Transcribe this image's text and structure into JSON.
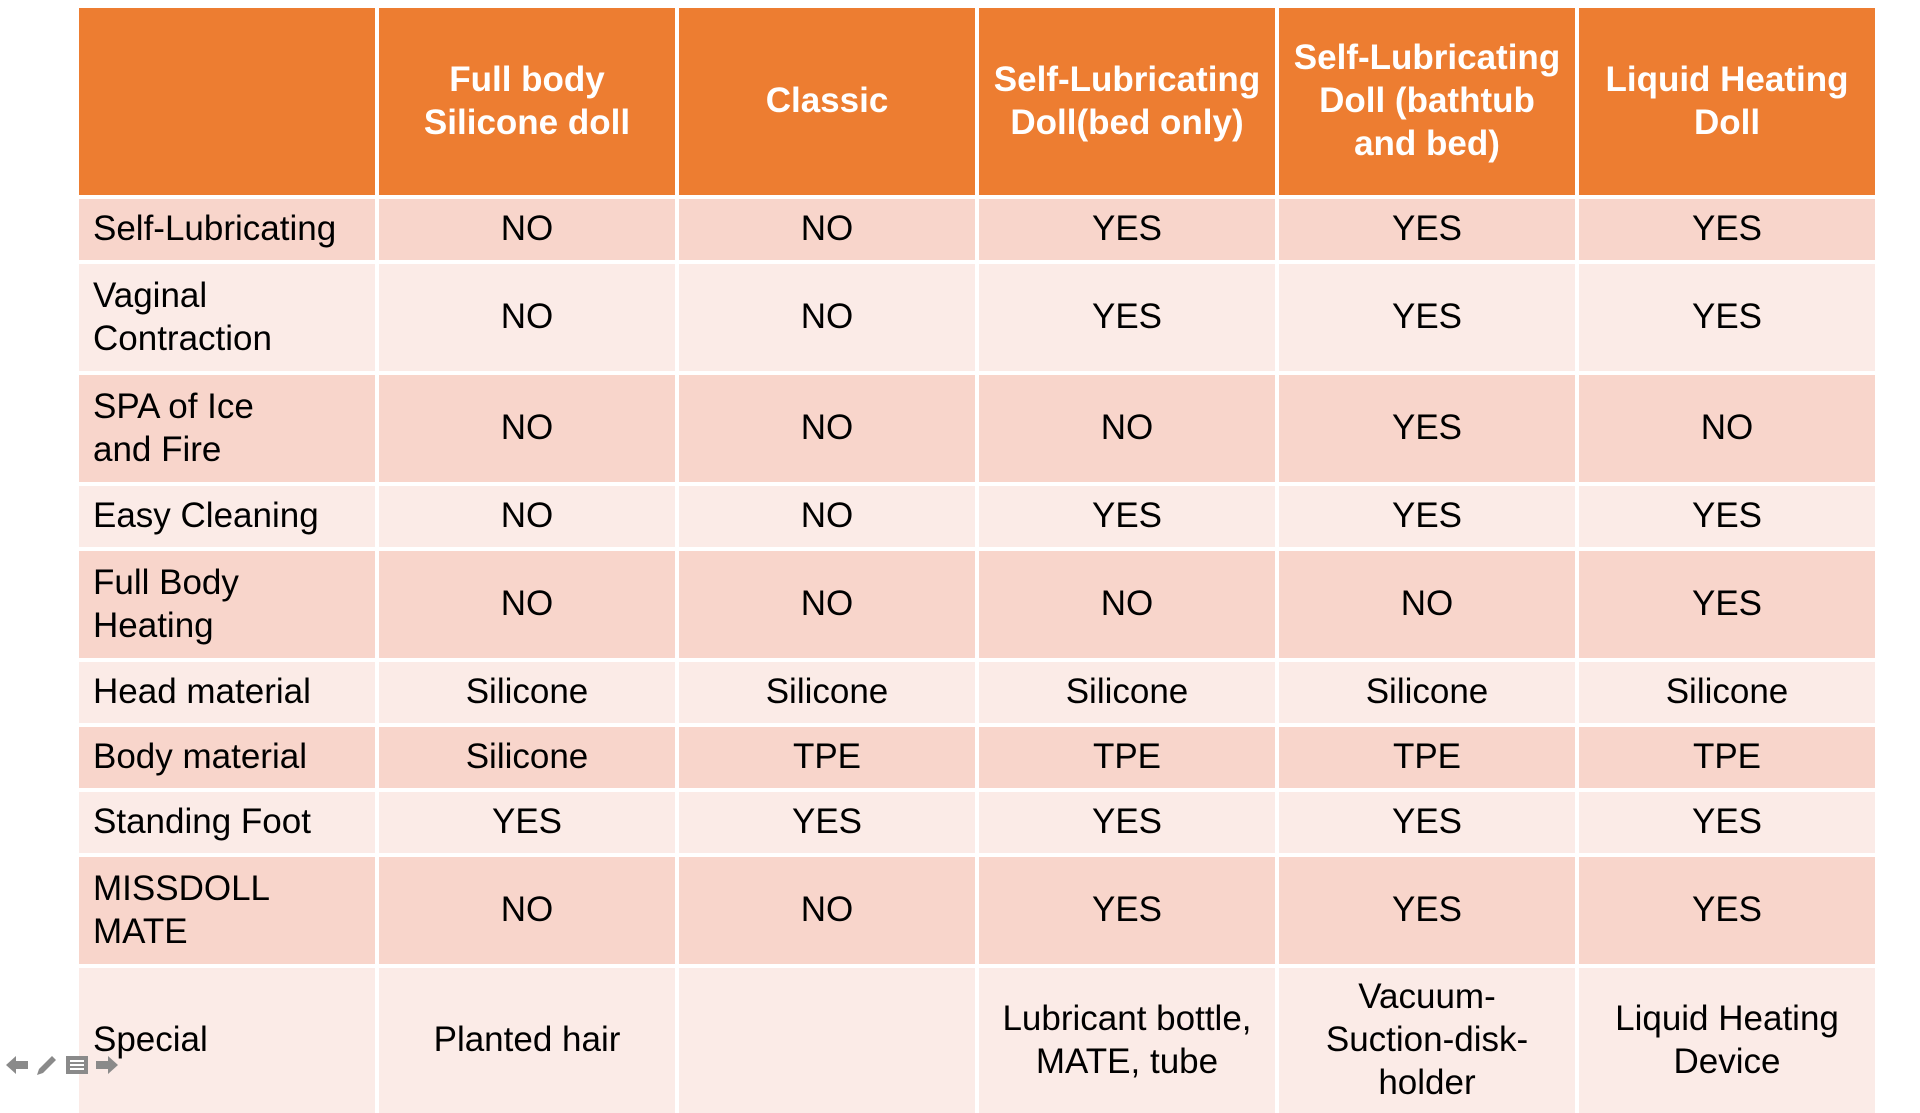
{
  "headers": [
    "",
    "Full body Silicone doll",
    "Classic",
    "Self-Lubricating Doll(bed only)",
    "Self-Lubricating Doll (bathtub and bed)",
    "Liquid Heating Doll"
  ],
  "rows": [
    {
      "label": "Self-Lubricating",
      "values": [
        "NO",
        "NO",
        "YES",
        "YES",
        "YES"
      ]
    },
    {
      "label": "Vaginal Contraction",
      "values": [
        "NO",
        "NO",
        "YES",
        "YES",
        "YES"
      ]
    },
    {
      "label": "SPA of Ice and Fire",
      "values": [
        "NO",
        "NO",
        "NO",
        "YES",
        "NO"
      ]
    },
    {
      "label": "Easy Cleaning",
      "values": [
        "NO",
        "NO",
        "YES",
        "YES",
        "YES"
      ]
    },
    {
      "label": "Full Body Heating",
      "values": [
        "NO",
        "NO",
        "NO",
        "NO",
        "YES"
      ]
    },
    {
      "label": "Head material",
      "values": [
        "Silicone",
        "Silicone",
        "Silicone",
        "Silicone",
        "Silicone"
      ]
    },
    {
      "label": "Body material",
      "values": [
        "Silicone",
        "TPE",
        "TPE",
        "TPE",
        "TPE"
      ]
    },
    {
      "label": "Standing Foot",
      "values": [
        "YES",
        "YES",
        "YES",
        "YES",
        "YES"
      ]
    },
    {
      "label": "MISSDOLL MATE",
      "values": [
        "NO",
        "NO",
        "YES",
        "YES",
        "YES"
      ]
    },
    {
      "label": "Special",
      "values": [
        "Planted hair",
        "",
        "Lubricant bottle, MATE, tube",
        "Vacuum-Suction-disk-holder",
        "Liquid Heating Device"
      ]
    }
  ],
  "colors": {
    "header": "#ed7d31",
    "row_odd": "#f8d5cb",
    "row_even": "#fbebe7"
  },
  "nav_icons": [
    "arrow-left-icon",
    "pencil-icon",
    "menu-icon",
    "arrow-right-icon"
  ]
}
